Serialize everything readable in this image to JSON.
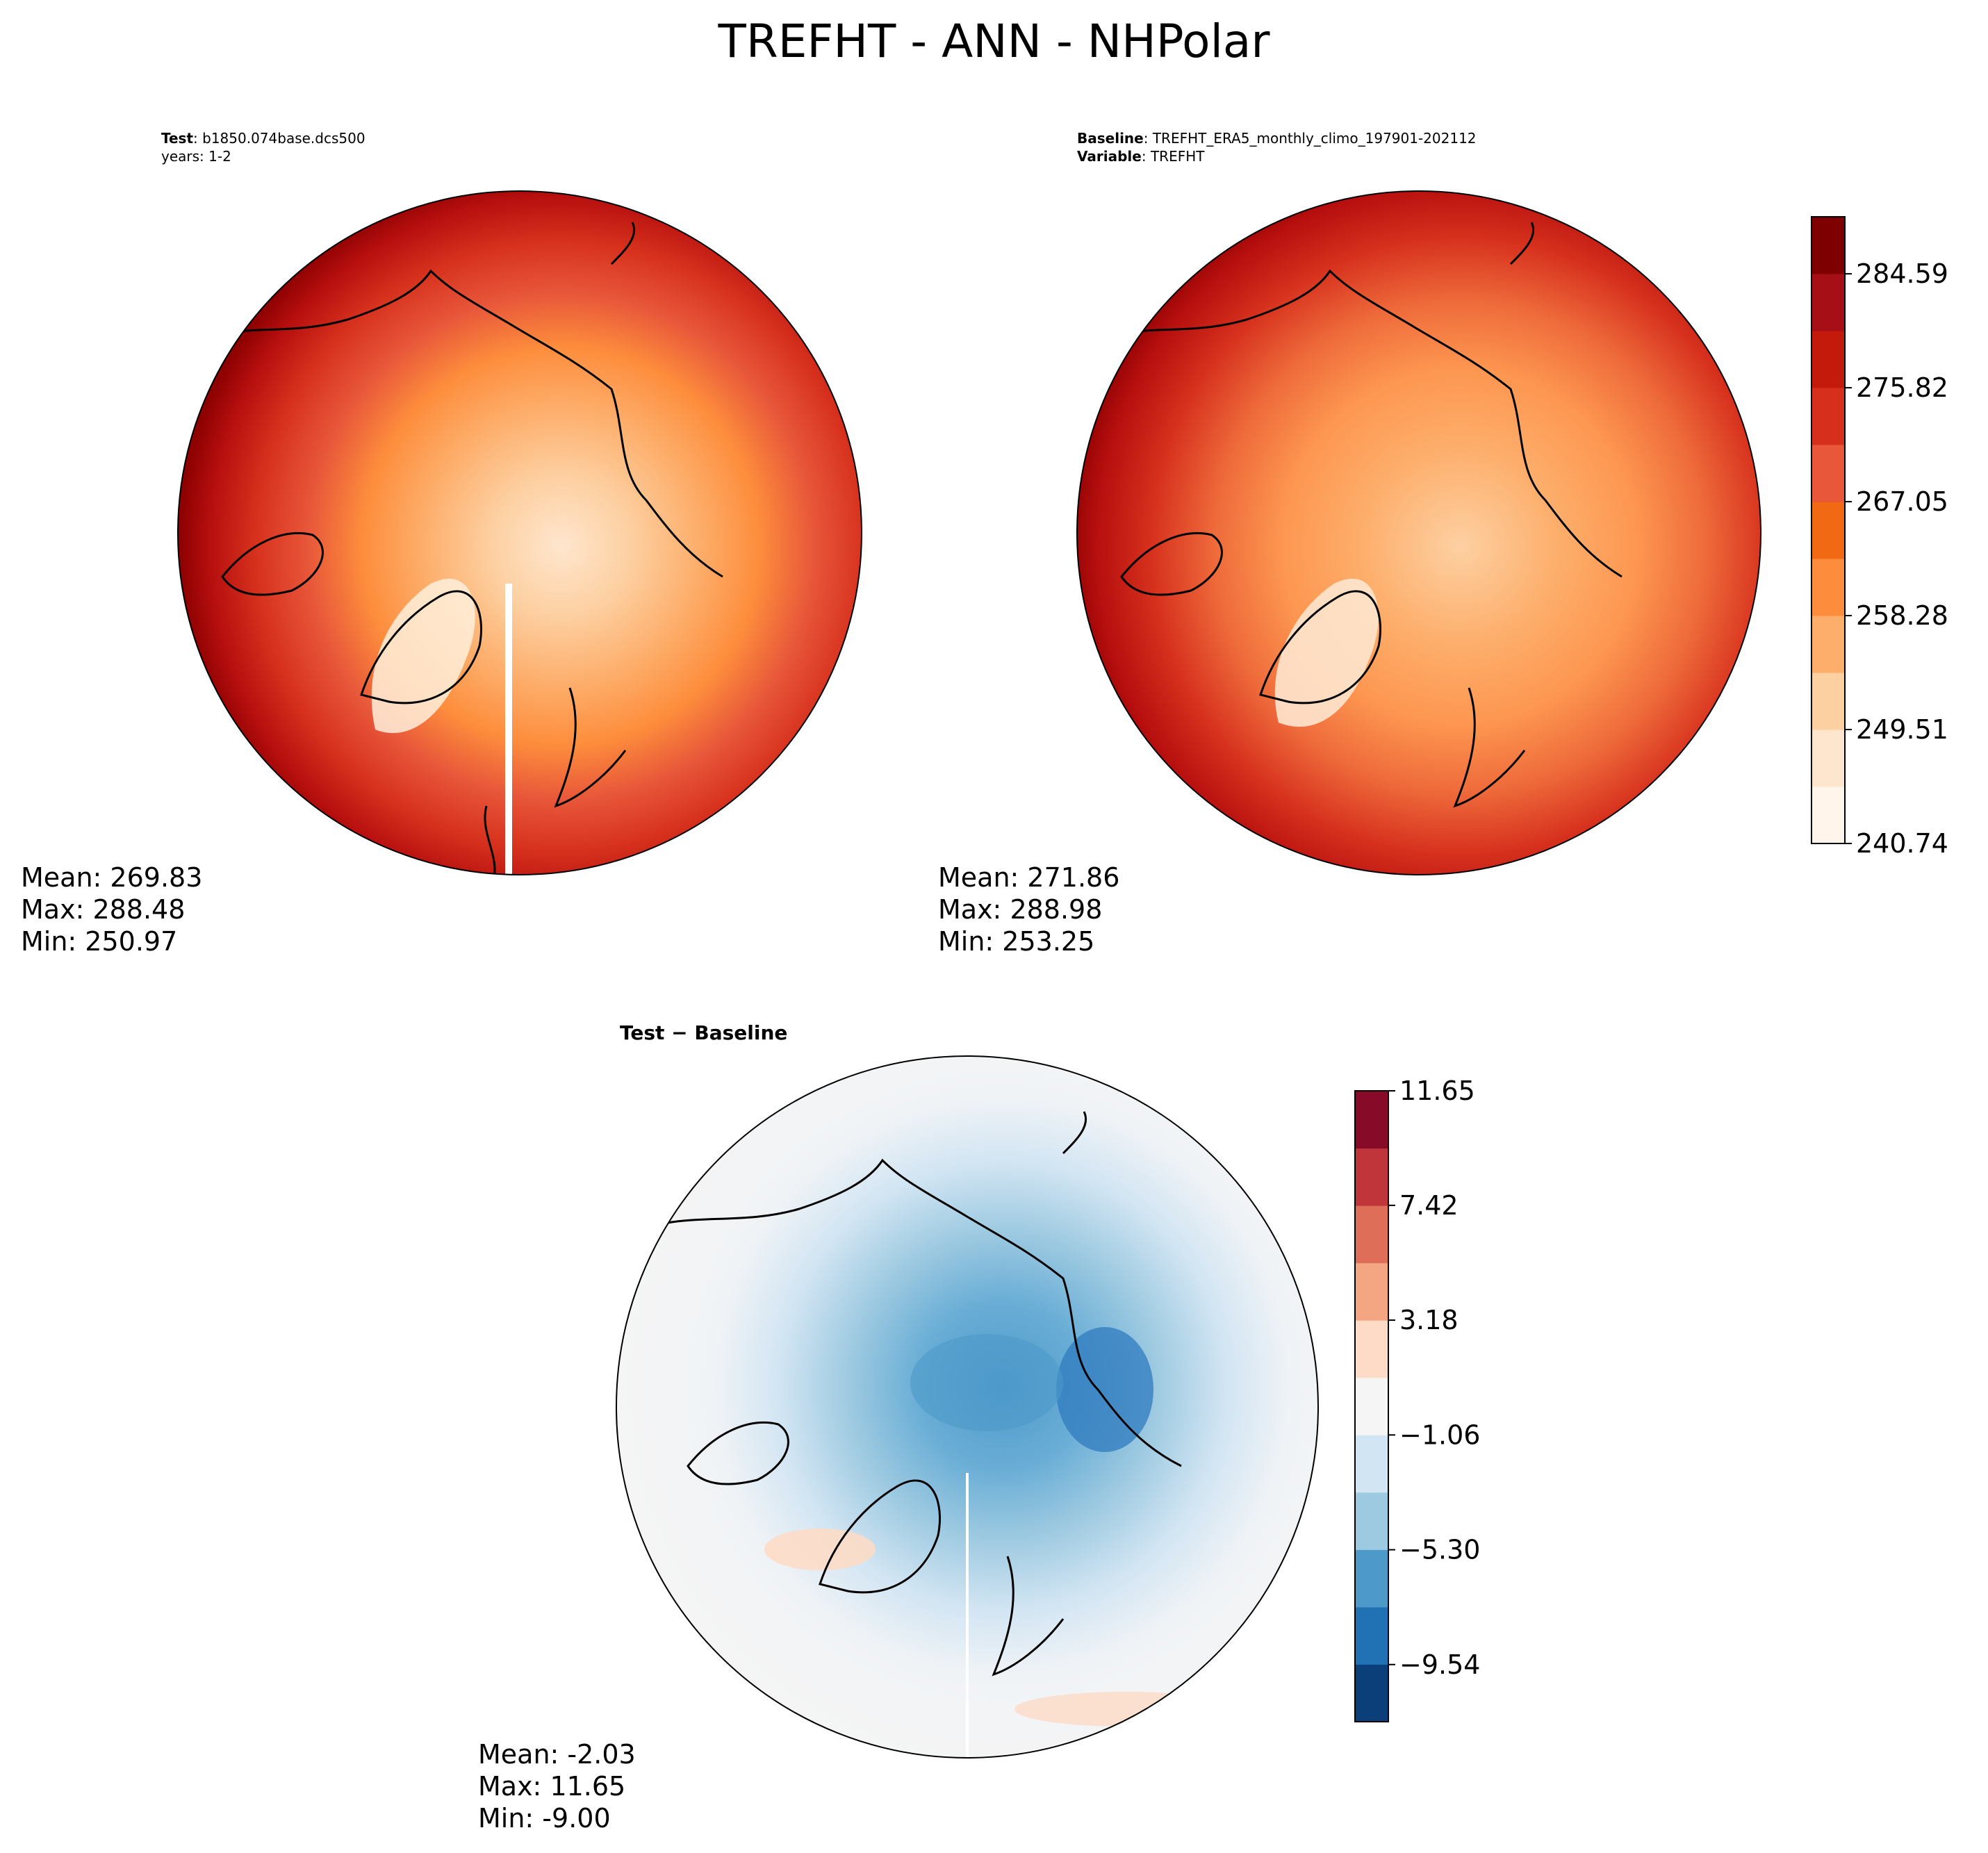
{
  "figure": {
    "title": "TREFHT - ANN - NHPolar"
  },
  "panels": {
    "test": {
      "label_key": "Test",
      "label_value": "b1850.074base.dcs500",
      "line2": "years: 1-2",
      "stats": {
        "mean": "Mean: 269.83",
        "max": "Max: 288.48",
        "min": "Min: 250.97"
      }
    },
    "baseline": {
      "label_key": "Baseline",
      "label_value": "TREFHT_ERA5_monthly_climo_197901-202112",
      "line2_key": "Variable",
      "line2_value": "TREFHT",
      "stats": {
        "mean": "Mean: 271.86",
        "max": "Max: 288.98",
        "min": "Min: 253.25"
      }
    },
    "diff": {
      "label": "Test − Baseline",
      "stats": {
        "mean": "Mean: -2.03",
        "max": "Max: 11.65",
        "min": "Min: -9.00"
      }
    }
  },
  "chart_data": [
    {
      "type": "heatmap",
      "panel": "Test",
      "projection": "north polar stereographic",
      "mean": 269.83,
      "max": 288.48,
      "min": 250.97
    },
    {
      "type": "heatmap",
      "panel": "Baseline",
      "projection": "north polar stereographic",
      "mean": 271.86,
      "max": 288.98,
      "min": 253.25
    },
    {
      "type": "heatmap",
      "panel": "Test - Baseline",
      "projection": "north polar stereographic",
      "mean": -2.03,
      "max": 11.65,
      "min": -9.0
    }
  ],
  "colorbars": {
    "abs": {
      "colors": [
        "#fff5eb",
        "#fee6ce",
        "#fdd0a2",
        "#fdae6b",
        "#fd8d3c",
        "#f16913",
        "#e8573a",
        "#d6301d",
        "#c41a0b",
        "#a50f15",
        "#7f0000"
      ],
      "colors_note": "",
      "min": 240.74,
      "max": 288.98,
      "ticks": [
        240.74,
        249.51,
        258.28,
        267.05,
        275.82,
        284.59
      ],
      "tick_labels": [
        "240.74",
        "249.51",
        "258.28",
        "267.05",
        "275.82",
        "284.59"
      ]
    },
    "diff": {
      "colors": [
        "#0b3f7a",
        "#2171b5",
        "#4d99ca",
        "#9ecae1",
        "#d2e5f3",
        "#f5f5f5",
        "#fddbc7",
        "#f4a582",
        "#de6e58",
        "#c0353a",
        "#870a28"
      ],
      "min": -11.65,
      "max": 11.65,
      "ticks": [
        -9.54,
        -5.3,
        -1.06,
        3.18,
        7.42,
        11.65
      ],
      "tick_labels": [
        "−9.54",
        "−5.30",
        "−1.06",
        "3.18",
        "7.42",
        "11.65"
      ]
    }
  }
}
